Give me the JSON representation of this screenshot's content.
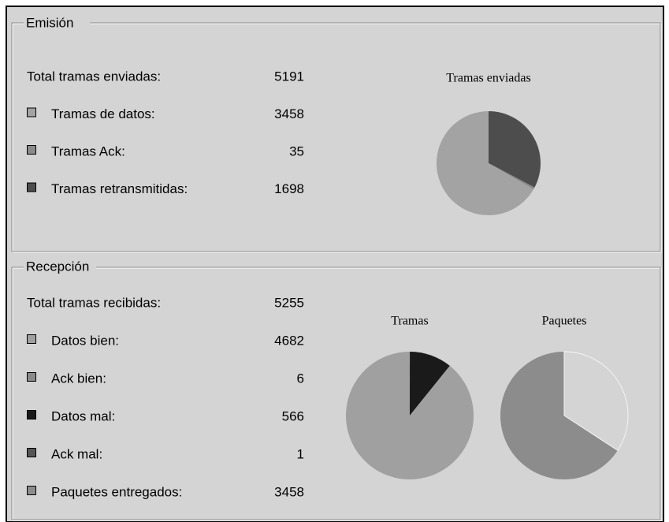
{
  "emision": {
    "title": "Emisión",
    "total": {
      "label": "Total tramas enviadas:",
      "value": 5191
    },
    "items": [
      {
        "label": "Tramas de datos:",
        "value": 3458,
        "color": "#a3a3a3"
      },
      {
        "label": "Tramas Ack:",
        "value": 35,
        "color": "#8a8a8a"
      },
      {
        "label": "Tramas retransmitidas:",
        "value": 1698,
        "color": "#4d4d4d"
      }
    ],
    "chart": {
      "type": "pie",
      "title": "Tramas enviadas"
    }
  },
  "recepcion": {
    "title": "Recepción",
    "total": {
      "label": "Total tramas recibidas:",
      "value": 5255
    },
    "items": [
      {
        "label": "Datos bien:",
        "value": 4682,
        "color": "#a0a0a0"
      },
      {
        "label": "Ack bien:",
        "value": 6,
        "color": "#8a8a8a"
      },
      {
        "label": "Datos mal:",
        "value": 566,
        "color": "#1a1a1a"
      },
      {
        "label": "Ack mal:",
        "value": 1,
        "color": "#555555"
      },
      {
        "label": "Paquetes entregados:",
        "value": 3458,
        "color": "#8c8c8c"
      }
    ],
    "charts": [
      {
        "type": "pie",
        "title": "Tramas"
      },
      {
        "type": "pie",
        "title": "Paquetes"
      }
    ]
  }
}
